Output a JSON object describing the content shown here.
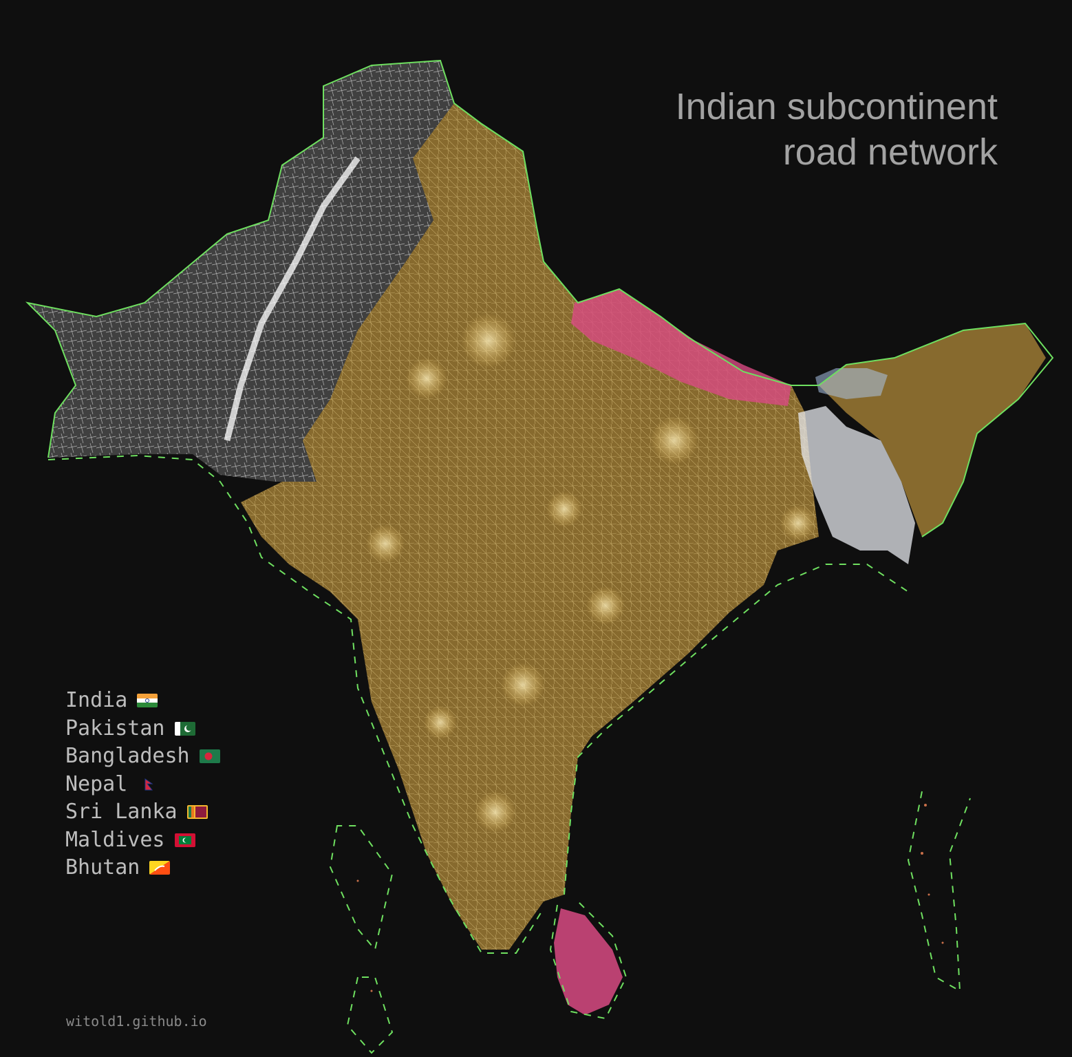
{
  "title": {
    "line1": "Indian subcontinent",
    "line2": "road network"
  },
  "legend": [
    {
      "country": "India",
      "color": "#f7cf6e",
      "flag": "india-flag-icon"
    },
    {
      "country": "Pakistan",
      "color": "#ffffff",
      "flag": "pakistan-flag-icon"
    },
    {
      "country": "Bangladesh",
      "color": "#e6e8ee",
      "flag": "bangladesh-flag-icon"
    },
    {
      "country": "Nepal",
      "color": "#d84a82",
      "flag": "nepal-flag-icon"
    },
    {
      "country": "Sri Lanka",
      "color": "#d84a82",
      "flag": "sri-lanka-flag-icon"
    },
    {
      "country": "Maldives",
      "color": "#c9704a",
      "flag": "maldives-flag-icon"
    },
    {
      "country": "Bhutan",
      "color": "#a9c3e6",
      "flag": "bhutan-flag-icon"
    }
  ],
  "credit": "witold1.github.io",
  "colors": {
    "background": "#0f0f0f",
    "border": "#6fe060",
    "coastline_dashes": "#6fe060"
  }
}
